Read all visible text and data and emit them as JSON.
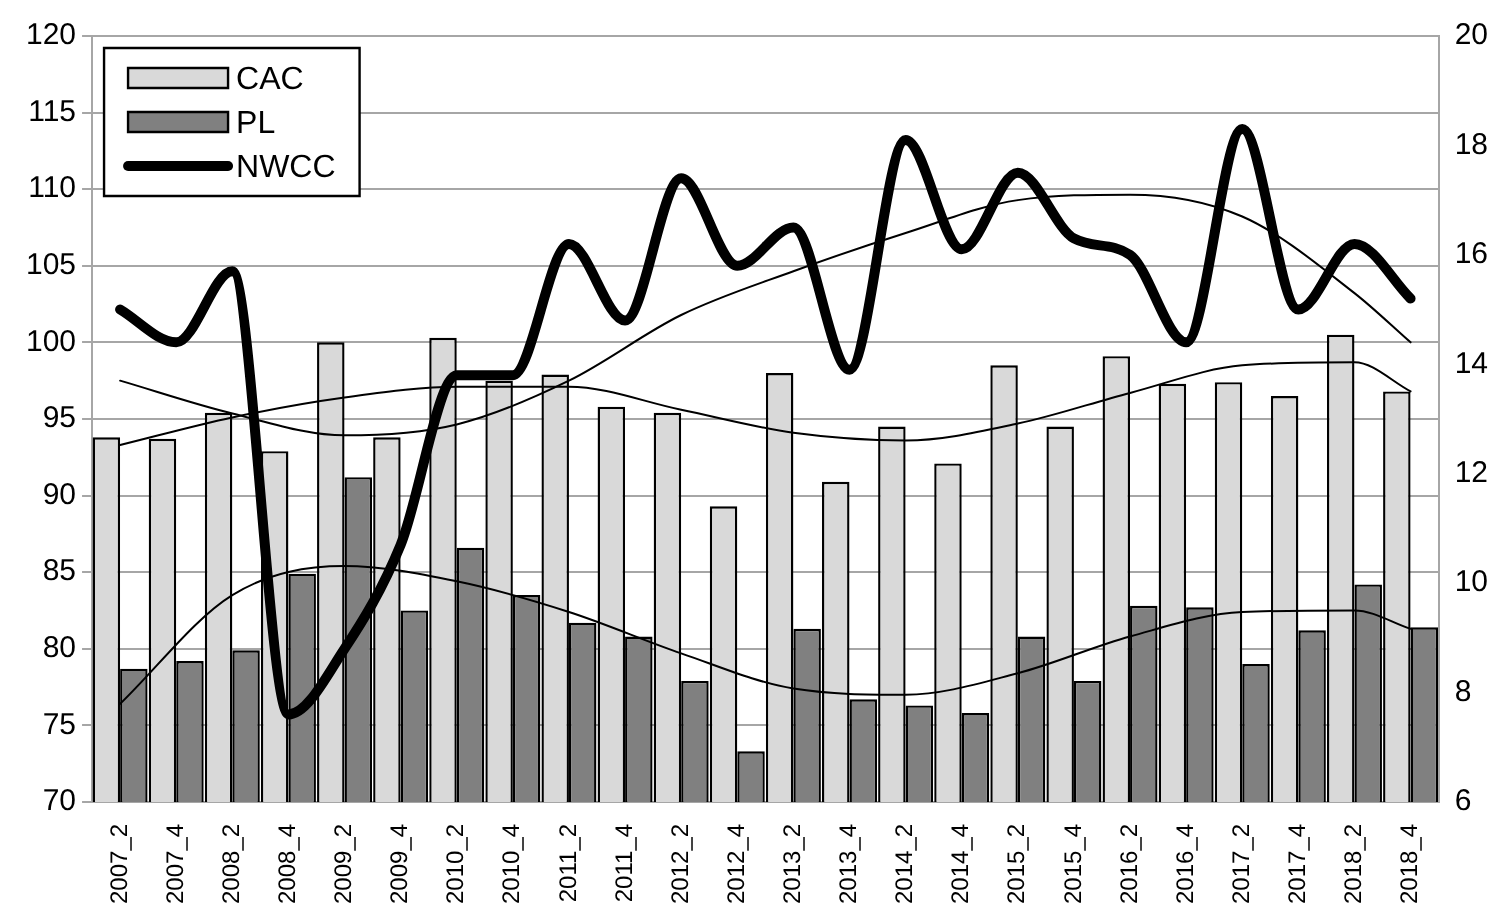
{
  "chart_data": {
    "type": "bar",
    "categories": [
      "2007_2",
      "2007_4",
      "2008_2",
      "2008_4",
      "2009_2",
      "2009_4",
      "2010_2",
      "2010_4",
      "2011_2",
      "2011_4",
      "2012_2",
      "2012_4",
      "2013_2",
      "2013_4",
      "2014_2",
      "2014_4",
      "2015_2",
      "2015_4",
      "2016_2",
      "2016_4",
      "2017_2",
      "2017_4",
      "2018_2",
      "2018_4"
    ],
    "series": [
      {
        "name": "CAC",
        "color": "#d9d9d9",
        "values": [
          93.8,
          93.7,
          95.4,
          92.9,
          100,
          93.8,
          100.3,
          97.5,
          97.9,
          95.8,
          95.4,
          89.3,
          98,
          90.9,
          94.5,
          92.1,
          98.5,
          94.5,
          99.1,
          97.3,
          97.4,
          96.5,
          100.5,
          96.8
        ]
      },
      {
        "name": "PL",
        "color": "#808080",
        "values": [
          78.7,
          79.2,
          79.9,
          84.9,
          91.2,
          82.5,
          86.6,
          83.5,
          81.7,
          80.8,
          77.9,
          73.3,
          81.3,
          76.7,
          76.3,
          75.8,
          80.8,
          77.9,
          82.8,
          82.7,
          79.0,
          81.2,
          84.2,
          81.4
        ]
      },
      {
        "name": "NWCC",
        "type": "line",
        "axis": "y2",
        "color": "#000000",
        "values": [
          15.0,
          14.4,
          15.7,
          7.6,
          8.8,
          10.7,
          13.8,
          13.8,
          16.2,
          14.8,
          17.4,
          15.8,
          16.5,
          13.9,
          18.1,
          16.1,
          17.5,
          16.3,
          16.0,
          14.4,
          18.3,
          15.0,
          16.2,
          15.2
        ]
      },
      {
        "type": "line",
        "color": "#000000",
        "x": [
          "2007_2",
          "2008_2",
          "2009_2",
          "2010_2",
          "2011_2",
          "2012_2",
          "2013_2",
          "2014_2",
          "2015_2",
          "2016_2",
          "2017_2",
          "2018_2",
          "2018_4"
        ],
        "values": [
          93.3,
          95.1,
          96.4,
          97.1,
          97.1,
          95.6,
          94.1,
          93.6,
          94.7,
          96.7,
          98.5,
          98.7,
          96.8
        ]
      },
      {
        "type": "line",
        "color": "#000000",
        "x": [
          "2007_2",
          "2008_2",
          "2009_2",
          "2010_2",
          "2011_2",
          "2012_2",
          "2013_2",
          "2014_2",
          "2015_2",
          "2016_2",
          "2017_2",
          "2018_2",
          "2018_4"
        ],
        "values": [
          76.4,
          83.5,
          85.4,
          84.4,
          82.4,
          79.7,
          77.4,
          77.0,
          78.4,
          80.8,
          82.4,
          82.5,
          81.3
        ]
      },
      {
        "type": "line",
        "axis": "y2",
        "color": "#000000",
        "x": [
          "2007_2",
          "2008_2",
          "2009_2",
          "2010_2",
          "2011_2",
          "2012_2",
          "2013_2",
          "2014_2",
          "2015_2",
          "2016_2",
          "2017_2",
          "2018_2",
          "2018_4"
        ],
        "values": [
          13.7,
          13.1,
          12.7,
          12.9,
          13.7,
          14.9,
          15.7,
          16.4,
          17.0,
          17.1,
          16.7,
          15.3,
          14.4
        ]
      }
    ],
    "ylim": [
      70,
      120
    ],
    "yticks": [
      70,
      75,
      80,
      85,
      90,
      95,
      100,
      105,
      110,
      115,
      120
    ],
    "y2lim": [
      6,
      20
    ],
    "y2ticks": [
      6,
      8,
      10,
      12,
      14,
      16,
      18,
      20
    ],
    "grid": "y",
    "legend": "top left"
  }
}
